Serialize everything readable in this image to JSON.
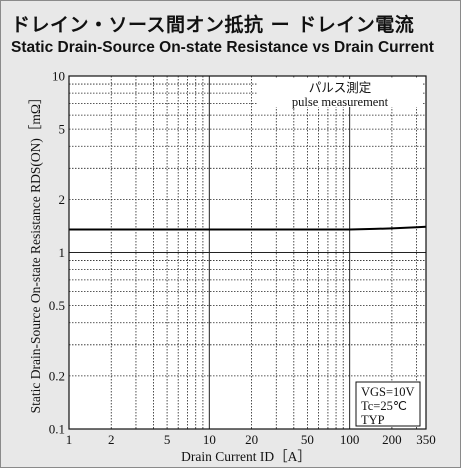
{
  "title_ja": "ドレイン・ソース間オン抵抗 ー ドレイン電流",
  "title_en": "Static Drain-Source On-state Resistance vs Drain Current",
  "chart_data": {
    "type": "line",
    "title": "Static Drain-Source On-state Resistance vs Drain Current",
    "xlabel": "Drain Current  ID［A］",
    "ylabel": "Static Drain-Source On-state Resistance  RDS(ON)［mΩ］",
    "x_scale": "log",
    "y_scale": "log",
    "xlim": [
      1,
      350
    ],
    "ylim": [
      0.1,
      10
    ],
    "grid": true,
    "x_ticks": [
      {
        "value": 1,
        "label": "1"
      },
      {
        "value": 2,
        "label": "2"
      },
      {
        "value": 5,
        "label": "5"
      },
      {
        "value": 10,
        "label": "10"
      },
      {
        "value": 20,
        "label": "20"
      },
      {
        "value": 50,
        "label": "50"
      },
      {
        "value": 100,
        "label": "100"
      },
      {
        "value": 200,
        "label": "200"
      },
      {
        "value": 350,
        "label": "350"
      }
    ],
    "y_ticks": [
      {
        "value": 0.1,
        "label": "0.1"
      },
      {
        "value": 0.2,
        "label": "0.2"
      },
      {
        "value": 0.5,
        "label": "0.5"
      },
      {
        "value": 1,
        "label": "1"
      },
      {
        "value": 2,
        "label": "2"
      },
      {
        "value": 5,
        "label": "5"
      },
      {
        "value": 10,
        "label": "10"
      }
    ],
    "series": [
      {
        "x": [
          1,
          10,
          50,
          100,
          150,
          200,
          300,
          350
        ],
        "y": [
          1.35,
          1.35,
          1.35,
          1.35,
          1.36,
          1.37,
          1.39,
          1.4
        ]
      }
    ],
    "annotations": {
      "top": [
        "パルス測定",
        "pulse measurement"
      ],
      "conditions": [
        "VGS=10V",
        "Tc=25℃",
        "TYP"
      ]
    }
  }
}
